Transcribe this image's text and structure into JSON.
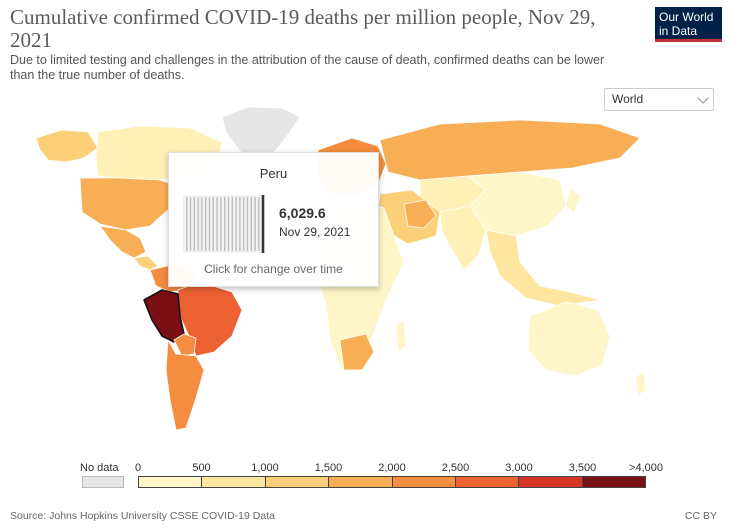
{
  "header": {
    "title": "Cumulative confirmed COVID-19 deaths per million people, Nov 29, 2021",
    "subtitle": "Due to limited testing and challenges in the attribution of the cause of death, confirmed deaths can be lower than the true number of deaths."
  },
  "logo": {
    "line1": "Our World",
    "line2": "in Data"
  },
  "region_select": {
    "value": "World"
  },
  "tooltip": {
    "country": "Peru",
    "value": "6,029.6",
    "date": "Nov 29, 2021",
    "hint": "Click for change over time"
  },
  "legend": {
    "no_data_label": "No data",
    "no_data_color": "#e6e6e6",
    "ticks": [
      "0",
      "500",
      "1,000",
      "1,500",
      "2,000",
      "2,500",
      "3,000",
      "3,500",
      ">4,000"
    ],
    "colors": [
      "#fef6c8",
      "#fce6a0",
      "#fbd078",
      "#f8ae55",
      "#f48d3f",
      "#ec6232",
      "#d53628",
      "#7b0f16"
    ]
  },
  "footer": {
    "source": "Source: Johns Hopkins University CSSE COVID-19 Data",
    "license": "CC BY"
  }
}
